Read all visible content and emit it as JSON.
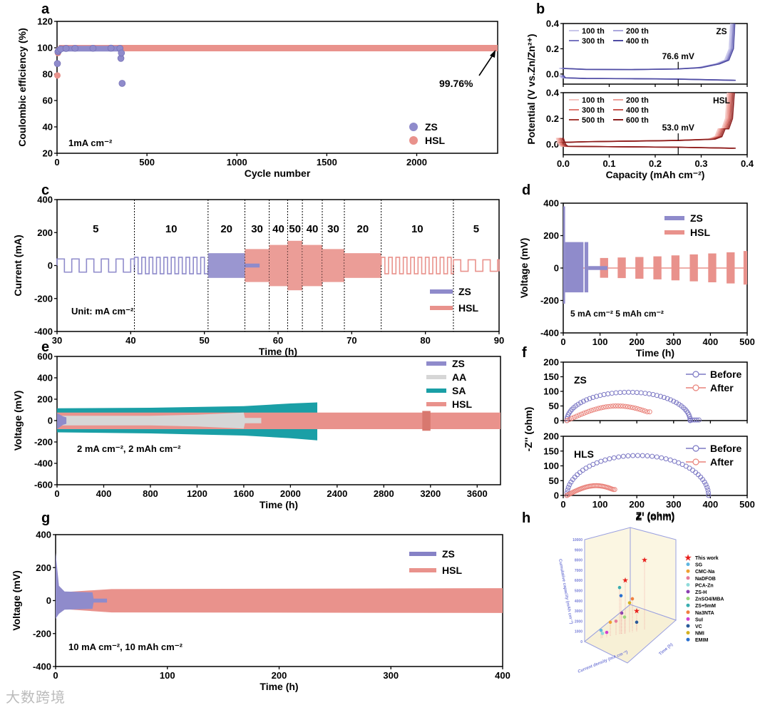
{
  "panel_labels": [
    "a",
    "b",
    "c",
    "d",
    "e",
    "f",
    "g",
    "h"
  ],
  "watermark": "大数跨境",
  "colors": {
    "ZS": "#8f8bcb",
    "HSL": "#e9928c",
    "AA": "#d6d6d6",
    "SA": "#1a9fa6",
    "ZS_dark": "#4f4ca3",
    "HSL_dark": "#8b1d1d",
    "star": "#e8201c"
  },
  "chart_data": [
    {
      "id": "a",
      "type": "scatter",
      "xlabel": "Cycle number",
      "ylabel": "Coulombic efficiency (%)",
      "xlim": [
        0,
        2450
      ],
      "ylim": [
        20,
        120
      ],
      "xticks": [
        0,
        500,
        1000,
        1500,
        2000
      ],
      "yticks": [
        20,
        40,
        60,
        80,
        100,
        120
      ],
      "annotation": "1mA cm⁻²",
      "value_label": "99.76%",
      "series": [
        {
          "name": "ZS",
          "points": [
            [
              2,
              88
            ],
            [
              5,
              97
            ],
            [
              10,
              98
            ],
            [
              20,
              99
            ],
            [
              50,
              99.5
            ],
            [
              100,
              99.6
            ],
            [
              200,
              99.6
            ],
            [
              300,
              99.7
            ],
            [
              350,
              99.5
            ],
            [
              355,
              92
            ],
            [
              358,
              96
            ],
            [
              362,
              73
            ]
          ],
          "band_end": 360
        },
        {
          "name": "HSL",
          "points": [
            [
              2,
              79
            ],
            [
              5,
              96
            ],
            [
              10,
              98.5
            ]
          ],
          "steady_value": 99.76,
          "band_end": 2450
        }
      ]
    },
    {
      "id": "b",
      "type": "line",
      "xlabel": "Capacity (mAh cm⁻²)",
      "ylabel": "Potential (V vs.Zn/Zn²⁺)",
      "xlim": [
        0,
        0.4
      ],
      "ylim": [
        -0.08,
        0.4
      ],
      "xticks": [
        0,
        0.1,
        0.2,
        0.3,
        0.4
      ],
      "xtick_labels": [
        "0.0",
        "0.1",
        "0.2",
        "0.3",
        "0.4"
      ],
      "yticks": [
        0,
        0.2,
        0.4
      ],
      "ytick_labels": [
        "0.0",
        "0.2",
        "0.4"
      ],
      "subplots": [
        {
          "name": "ZS",
          "legend": [
            "100 th",
            "200 th",
            "300 th",
            "400 th"
          ],
          "overpotential": "76.6 mV",
          "marker_x": 0.25,
          "charge": [
            [
              0,
              0.045
            ],
            [
              0.05,
              0.037
            ],
            [
              0.15,
              0.035
            ],
            [
              0.25,
              0.04
            ],
            [
              0.3,
              0.05
            ],
            [
              0.34,
              0.08
            ],
            [
              0.36,
              0.11
            ],
            [
              0.37,
              0.2
            ],
            [
              0.373,
              0.4
            ]
          ],
          "discharge": [
            [
              0,
              -0.01
            ],
            [
              0.005,
              -0.03
            ],
            [
              0.05,
              -0.035
            ],
            [
              0.15,
              -0.037
            ],
            [
              0.25,
              -0.04
            ],
            [
              0.375,
              -0.05
            ]
          ]
        },
        {
          "name": "HSL",
          "legend": [
            "100 th",
            "200 th",
            "300 th",
            "400 th",
            "500 th",
            "600 th"
          ],
          "overpotential": "53.0 mV",
          "marker_x": 0.25,
          "charge": [
            [
              0,
              0.015
            ],
            [
              0.05,
              0.02
            ],
            [
              0.15,
              0.025
            ],
            [
              0.25,
              0.03
            ],
            [
              0.33,
              0.04
            ],
            [
              0.345,
              0.06
            ],
            [
              0.352,
              0.12
            ],
            [
              0.36,
              0.12
            ],
            [
              0.368,
              0.2
            ],
            [
              0.372,
              0.4
            ]
          ],
          "discharge": [
            [
              0,
              0.05
            ],
            [
              0.005,
              0
            ],
            [
              0.01,
              -0.015
            ],
            [
              0.1,
              -0.018
            ],
            [
              0.25,
              -0.022
            ],
            [
              0.375,
              -0.03
            ]
          ]
        }
      ]
    },
    {
      "id": "c",
      "type": "line",
      "xlabel": "Time (h)",
      "ylabel": "Current (mA)",
      "xlim": [
        30,
        90
      ],
      "ylim": [
        -400,
        400
      ],
      "xticks": [
        30,
        40,
        50,
        60,
        70,
        80,
        90
      ],
      "yticks": [
        -400,
        -200,
        0,
        200,
        400
      ],
      "annotation": "Unit: mA cm⁻²",
      "rate_steps": [
        {
          "start": 30,
          "end": 40.5,
          "rate": "5",
          "amp": 40
        },
        {
          "start": 40.5,
          "end": 50.5,
          "rate": "10",
          "amp": 50
        },
        {
          "start": 50.5,
          "end": 55.5,
          "rate": "20",
          "amp": 75
        },
        {
          "start": 55.5,
          "end": 58.8,
          "rate": "30",
          "amp": 100
        },
        {
          "start": 58.8,
          "end": 61.3,
          "rate": "40",
          "amp": 125
        },
        {
          "start": 61.3,
          "end": 63.3,
          "rate": "50",
          "amp": 150
        },
        {
          "start": 63.3,
          "end": 66,
          "rate": "40",
          "amp": 125
        },
        {
          "start": 66,
          "end": 69,
          "rate": "30",
          "amp": 100
        },
        {
          "start": 69,
          "end": 74,
          "rate": "20",
          "amp": 75
        },
        {
          "start": 74,
          "end": 83.8,
          "rate": "10",
          "amp": 50
        },
        {
          "start": 83.8,
          "end": 90,
          "rate": "5",
          "amp": 35
        }
      ],
      "series": [
        {
          "name": "ZS",
          "end": 57.5
        },
        {
          "name": "HSL",
          "start": 55.5
        }
      ]
    },
    {
      "id": "d",
      "type": "line",
      "xlabel": "Time (h)",
      "ylabel": "Voltage (mV)",
      "xlim": [
        0,
        500
      ],
      "ylim": [
        -400,
        400
      ],
      "xticks": [
        0,
        100,
        200,
        300,
        400,
        500
      ],
      "yticks": [
        -400,
        -200,
        0,
        200,
        400
      ],
      "annotation": "5 mA cm⁻² 5 mAh cm⁻²",
      "series": [
        {
          "name": "ZS",
          "bands": [
            [
              0,
              5,
              380,
              -220
            ],
            [
              5,
              55,
              160,
              -150
            ],
            [
              58,
              68,
              160,
              -150
            ],
            [
              68,
              120,
              12,
              -12
            ]
          ]
        },
        {
          "name": "HSL",
          "bands": [
            [
              100,
              122,
              62,
              -60
            ],
            [
              148,
              170,
              65,
              -62
            ],
            [
              196,
              218,
              68,
              -66
            ],
            [
              245,
              267,
              72,
              -70
            ],
            [
              294,
              316,
              78,
              -76
            ],
            [
              344,
              366,
              84,
              -82
            ],
            [
              394,
              416,
              90,
              -88
            ],
            [
              444,
              466,
              97,
              -95
            ],
            [
              490,
              500,
              105,
              -102
            ]
          ]
        }
      ]
    },
    {
      "id": "e",
      "type": "line",
      "xlabel": "Time (h)",
      "ylabel": "Voltage (mV)",
      "xlim": [
        0,
        3800
      ],
      "ylim": [
        -600,
        600
      ],
      "xticks": [
        0,
        400,
        800,
        1200,
        1600,
        2000,
        2400,
        2800,
        3200,
        3600
      ],
      "yticks": [
        -600,
        -400,
        -200,
        0,
        200,
        400,
        600
      ],
      "annotation": "2 mA cm⁻², 2 mAh cm⁻²",
      "series": [
        {
          "name": "ZS",
          "envelope": [
            [
              0,
              70,
              -80
            ],
            [
              50,
              40,
              -40
            ],
            [
              80,
              30,
              -30
            ]
          ]
        },
        {
          "name": "AA",
          "envelope": [
            [
              0,
              45,
              -45
            ],
            [
              800,
              45,
              -45
            ],
            [
              1200,
              55,
              -55
            ],
            [
              1600,
              75,
              -75
            ],
            [
              1610,
              25,
              -25
            ],
            [
              1750,
              25,
              -25
            ]
          ]
        },
        {
          "name": "SA",
          "envelope": [
            [
              0,
              115,
              -110
            ],
            [
              800,
              120,
              -120
            ],
            [
              1600,
              135,
              -140
            ],
            [
              2000,
              160,
              -165
            ],
            [
              2230,
              170,
              -185
            ]
          ]
        },
        {
          "name": "HSL",
          "envelope": [
            [
              0,
              75,
              -80
            ],
            [
              3800,
              75,
              -80
            ]
          ]
        }
      ]
    },
    {
      "id": "f",
      "type": "scatter",
      "xlabel": "Z' (ohm)",
      "ylabel": "-Z'' (ohm)",
      "xlim": [
        0,
        500
      ],
      "ylim": [
        0,
        200
      ],
      "xticks": [
        0,
        100,
        200,
        300,
        400,
        500
      ],
      "yticks": [
        0,
        50,
        100,
        150,
        200
      ],
      "subplots": [
        {
          "name": "ZS",
          "series": [
            {
              "name": "Before",
              "x0": 10,
              "x1": 345,
              "peak": 97,
              "tail": [
                345,
                370
              ]
            },
            {
              "name": "After",
              "x0": 10,
              "x1": 235,
              "peak": 50,
              "end_y": 30
            }
          ]
        },
        {
          "name": "HLS",
          "series": [
            {
              "name": "Before",
              "x0": 10,
              "x1": 395,
              "peak": 135
            },
            {
              "name": "After",
              "x0": 10,
              "x1": 140,
              "peak": 33,
              "end_y": 20
            }
          ]
        }
      ]
    },
    {
      "id": "g",
      "type": "line",
      "xlabel": "Time (h)",
      "ylabel": "Voltage (mV)",
      "xlim": [
        0,
        400
      ],
      "ylim": [
        -400,
        400
      ],
      "xticks": [
        0,
        100,
        200,
        300,
        400
      ],
      "yticks": [
        -400,
        -200,
        0,
        200,
        400
      ],
      "annotation": "10 mA cm⁻², 10 mAh cm⁻²",
      "series": [
        {
          "name": "ZS",
          "envelope": [
            [
              0,
              290,
              -110
            ],
            [
              3,
              90,
              -80
            ],
            [
              8,
              55,
              -55
            ],
            [
              33,
              50,
              -50
            ],
            [
              34,
              12,
              -12
            ],
            [
              46,
              12,
              -12
            ]
          ]
        },
        {
          "name": "HSL",
          "envelope": [
            [
              4,
              50,
              -50
            ],
            [
              50,
              70,
              -72
            ],
            [
              400,
              75,
              -75
            ]
          ]
        }
      ]
    },
    {
      "id": "h",
      "type": "scatter",
      "zlabel": "Cumulative capacity (mAh cm⁻²)",
      "xlabel": "Current density (mA cm⁻²)",
      "ylabel": "Time (h)",
      "zticks": [
        0,
        1000,
        2000,
        3000,
        4000,
        5000,
        6000,
        7000,
        8000,
        9000,
        10000
      ],
      "legend": [
        {
          "name": "This work",
          "color": "#e8201c",
          "marker": "star"
        },
        {
          "name": "SG",
          "color": "#5fb6e0"
        },
        {
          "name": "CMC-Na",
          "color": "#f0a030"
        },
        {
          "name": "NaDFOB",
          "color": "#e77a9a"
        },
        {
          "name": "PCA-Zn",
          "color": "#8fdada"
        },
        {
          "name": "ZS-H",
          "color": "#8a3fb0"
        },
        {
          "name": "ZnSO4/MBA",
          "color": "#9ad67a"
        },
        {
          "name": "ZS+5mM",
          "color": "#3aaeb0"
        },
        {
          "name": "Na3NTA",
          "color": "#f08040"
        },
        {
          "name": "SuI",
          "color": "#d040d0"
        },
        {
          "name": "VC",
          "color": "#2a5a9a"
        },
        {
          "name": "NMI",
          "color": "#d4b020"
        },
        {
          "name": "EMIM",
          "color": "#2a70d0"
        }
      ],
      "points": [
        {
          "s": "This work",
          "z": 6000
        },
        {
          "s": "This work",
          "z": 8000
        },
        {
          "s": "This work",
          "z": 3000
        },
        {
          "s": "SG",
          "z": 1100
        },
        {
          "s": "CMC-Na",
          "z": 1900
        },
        {
          "s": "NaDFOB",
          "z": 2000
        },
        {
          "s": "PCA-Zn",
          "z": 800
        },
        {
          "s": "ZS-H",
          "z": 2800
        },
        {
          "s": "ZnSO4/MBA",
          "z": 2400
        },
        {
          "s": "ZS+5mM",
          "z": 5300
        },
        {
          "s": "Na3NTA",
          "z": 4200
        },
        {
          "s": "SuI",
          "z": 900
        },
        {
          "s": "VC",
          "z": 1900
        },
        {
          "s": "NMI",
          "z": 3800
        },
        {
          "s": "EMIM",
          "z": 4500
        }
      ]
    }
  ]
}
